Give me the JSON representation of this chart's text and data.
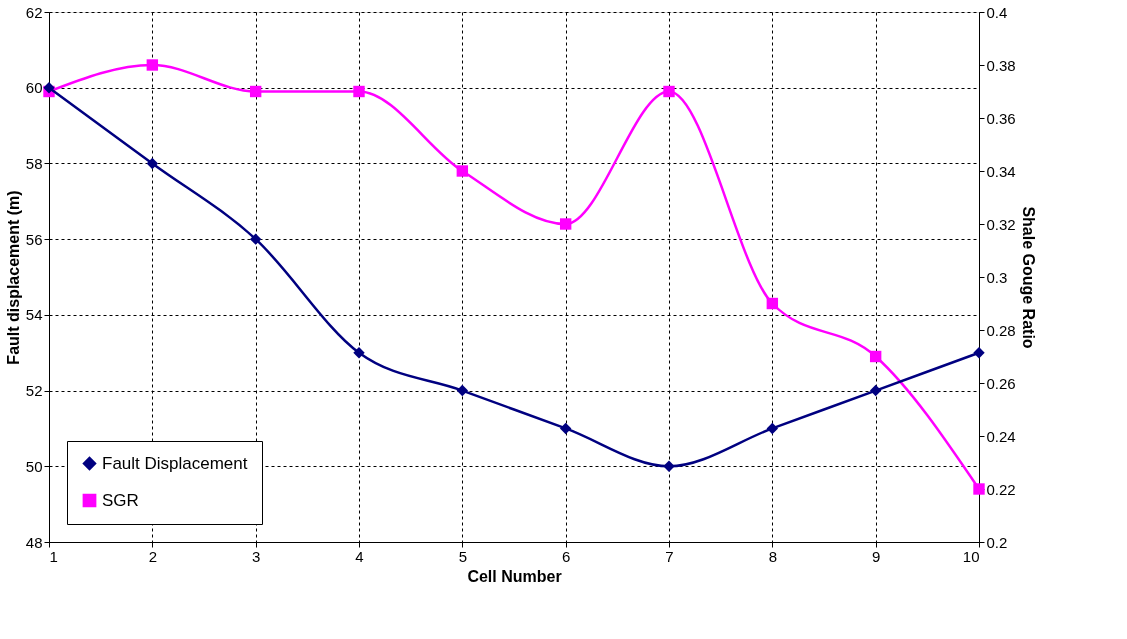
{
  "chart_data": {
    "type": "line",
    "xlabel": "Cell Number",
    "ylabel": "Fault displacement (m)",
    "y2label": "Shale Gouge Ratio",
    "x": [
      1,
      2,
      3,
      4,
      5,
      6,
      7,
      8,
      9,
      10
    ],
    "series": [
      {
        "name": "Fault Displacement",
        "color": "#000080",
        "marker": "diamond",
        "values": [
          60,
          58,
          56,
          53,
          52,
          51,
          50,
          51,
          52,
          53
        ]
      },
      {
        "name": "SGR",
        "color": "#ff00ff",
        "marker": "square",
        "axis": "y2",
        "values": [
          0.37,
          0.38,
          0.37,
          0.37,
          0.34,
          0.32,
          0.37,
          0.29,
          0.27,
          0.22
        ]
      }
    ],
    "xlim": [
      1,
      10
    ],
    "xticks": [
      1,
      2,
      3,
      4,
      5,
      6,
      7,
      8,
      9,
      10
    ],
    "ylim": [
      48,
      62
    ],
    "yticks": [
      48,
      50,
      52,
      54,
      56,
      58,
      60,
      62
    ],
    "y2lim": [
      0.2,
      0.4
    ],
    "y2ticks": [
      0.2,
      0.22,
      0.24,
      0.26,
      0.28,
      0.3,
      0.32,
      0.34,
      0.36,
      0.38,
      0.4
    ],
    "grid": true,
    "legend": "bottom left",
    "line_style": "solid"
  }
}
